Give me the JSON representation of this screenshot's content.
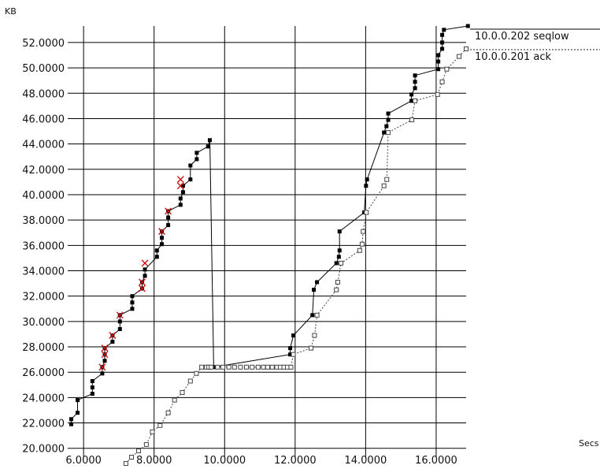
{
  "chart_data": {
    "type": "scatter",
    "ylabel": "KB",
    "xlabel": "Secs",
    "xlim": [
      5.55,
      16.85
    ],
    "ylim": [
      19.3,
      53.3
    ],
    "x_ticks": [
      {
        "value": 6,
        "label": "6.0000"
      },
      {
        "value": 8,
        "label": "8.0000"
      },
      {
        "value": 10,
        "label": "10.0000"
      },
      {
        "value": 12,
        "label": "12.0000"
      },
      {
        "value": 14,
        "label": "14.0000"
      },
      {
        "value": 16,
        "label": "16.0000"
      }
    ],
    "y_ticks": [
      {
        "value": 20,
        "label": "20.0000"
      },
      {
        "value": 22,
        "label": "22.0000"
      },
      {
        "value": 24,
        "label": "24.0000"
      },
      {
        "value": 26,
        "label": "26.0000"
      },
      {
        "value": 28,
        "label": "28.0000"
      },
      {
        "value": 30,
        "label": "30.0000"
      },
      {
        "value": 32,
        "label": "32.0000"
      },
      {
        "value": 34,
        "label": "34.0000"
      },
      {
        "value": 36,
        "label": "36.0000"
      },
      {
        "value": 38,
        "label": "38.0000"
      },
      {
        "value": 40,
        "label": "40.0000"
      },
      {
        "value": 42,
        "label": "42.0000"
      },
      {
        "value": 44,
        "label": "44.0000"
      },
      {
        "value": 46,
        "label": "46.0000"
      },
      {
        "value": 48,
        "label": "48.0000"
      },
      {
        "value": 50,
        "label": "50.0000"
      },
      {
        "value": 52,
        "label": "52.0000"
      }
    ],
    "grid": true,
    "legend_position": "top-right",
    "series": [
      {
        "name": "10.0.0.202 seqlow",
        "line_style": "solid",
        "marker": "filled-square",
        "color": "#000000",
        "x": [
          5.65,
          5.65,
          5.83,
          5.83,
          6.25,
          6.25,
          6.25,
          6.53,
          6.53,
          6.6,
          6.6,
          6.6,
          6.82,
          6.82,
          7.03,
          7.03,
          7.03,
          7.38,
          7.38,
          7.38,
          7.66,
          7.66,
          7.74,
          7.74,
          8.08,
          8.08,
          8.22,
          8.22,
          8.22,
          8.4,
          8.4,
          8.4,
          8.75,
          8.75,
          8.82,
          8.82,
          9.03,
          9.03,
          9.21,
          9.21,
          9.53,
          9.58,
          9.69,
          11.86,
          11.86,
          11.95,
          12.49,
          12.53,
          12.62,
          13.17,
          13.24,
          13.26,
          13.26,
          13.96,
          14.01,
          14.04,
          14.52,
          14.59,
          14.64,
          14.64,
          15.3,
          15.3,
          15.4,
          15.4,
          15.4,
          16.06,
          16.06,
          16.06,
          16.06,
          16.17,
          16.17,
          16.17,
          16.22,
          16.9
        ],
        "y": [
          21.9,
          22.3,
          22.8,
          23.8,
          24.3,
          24.8,
          25.3,
          25.9,
          26.4,
          26.9,
          27.4,
          27.9,
          28.4,
          28.9,
          29.4,
          30.0,
          30.5,
          31.0,
          31.5,
          32.0,
          32.6,
          33.1,
          33.6,
          34.1,
          35.1,
          35.6,
          36.1,
          36.6,
          37.1,
          37.6,
          38.2,
          38.7,
          39.2,
          39.7,
          40.2,
          40.7,
          41.2,
          42.3,
          42.8,
          43.3,
          43.8,
          44.3,
          26.4,
          27.4,
          27.9,
          28.9,
          30.5,
          32.5,
          33.1,
          34.6,
          35.1,
          35.6,
          37.1,
          38.6,
          40.7,
          41.2,
          44.9,
          45.4,
          45.9,
          46.4,
          47.4,
          47.9,
          48.4,
          48.9,
          49.4,
          49.9,
          50.5,
          51.0,
          51.0,
          51.5,
          52.0,
          52.6,
          53.0,
          53.3
        ]
      },
      {
        "name": "10.0.0.201 ack",
        "line_style": "dotted",
        "marker": "hollow-square",
        "color": "#444444",
        "x": [
          7.2,
          7.36,
          7.56,
          7.78,
          7.95,
          8.17,
          8.4,
          8.58,
          8.8,
          9.03,
          9.2,
          9.35,
          9.48,
          9.55,
          9.62,
          9.8,
          9.95,
          10.12,
          10.28,
          10.45,
          10.62,
          10.78,
          10.95,
          11.1,
          11.22,
          11.35,
          11.48,
          11.58,
          11.68,
          11.78,
          11.88,
          11.95,
          12.45,
          12.55,
          12.62,
          13.17,
          13.21,
          13.3,
          13.83,
          13.9,
          13.93,
          14.02,
          14.52,
          14.6,
          14.64,
          15.31,
          15.4,
          16.04,
          16.17,
          16.3,
          16.65,
          16.85
        ],
        "y": [
          18.8,
          19.3,
          19.8,
          20.3,
          21.3,
          21.8,
          22.8,
          23.8,
          24.4,
          25.3,
          25.9,
          26.4,
          26.4,
          26.4,
          26.4,
          26.4,
          26.4,
          26.4,
          26.4,
          26.4,
          26.4,
          26.4,
          26.4,
          26.4,
          26.4,
          26.4,
          26.4,
          26.4,
          26.4,
          26.4,
          26.4,
          27.4,
          27.9,
          28.9,
          30.5,
          32.5,
          33.1,
          34.6,
          35.6,
          36.1,
          37.1,
          38.6,
          40.7,
          41.2,
          44.9,
          45.9,
          47.4,
          47.9,
          48.9,
          49.9,
          50.9,
          51.5
        ]
      }
    ],
    "retransmits": {
      "marker": "red-x",
      "color": "#cc1111",
      "x": [
        6.53,
        6.6,
        6.6,
        6.82,
        7.03,
        7.66,
        7.66,
        7.74,
        8.22,
        8.4,
        8.75,
        8.75
      ],
      "y": [
        26.4,
        27.4,
        27.9,
        28.9,
        30.5,
        32.6,
        33.1,
        34.6,
        37.1,
        38.7,
        40.7,
        41.2
      ]
    }
  }
}
